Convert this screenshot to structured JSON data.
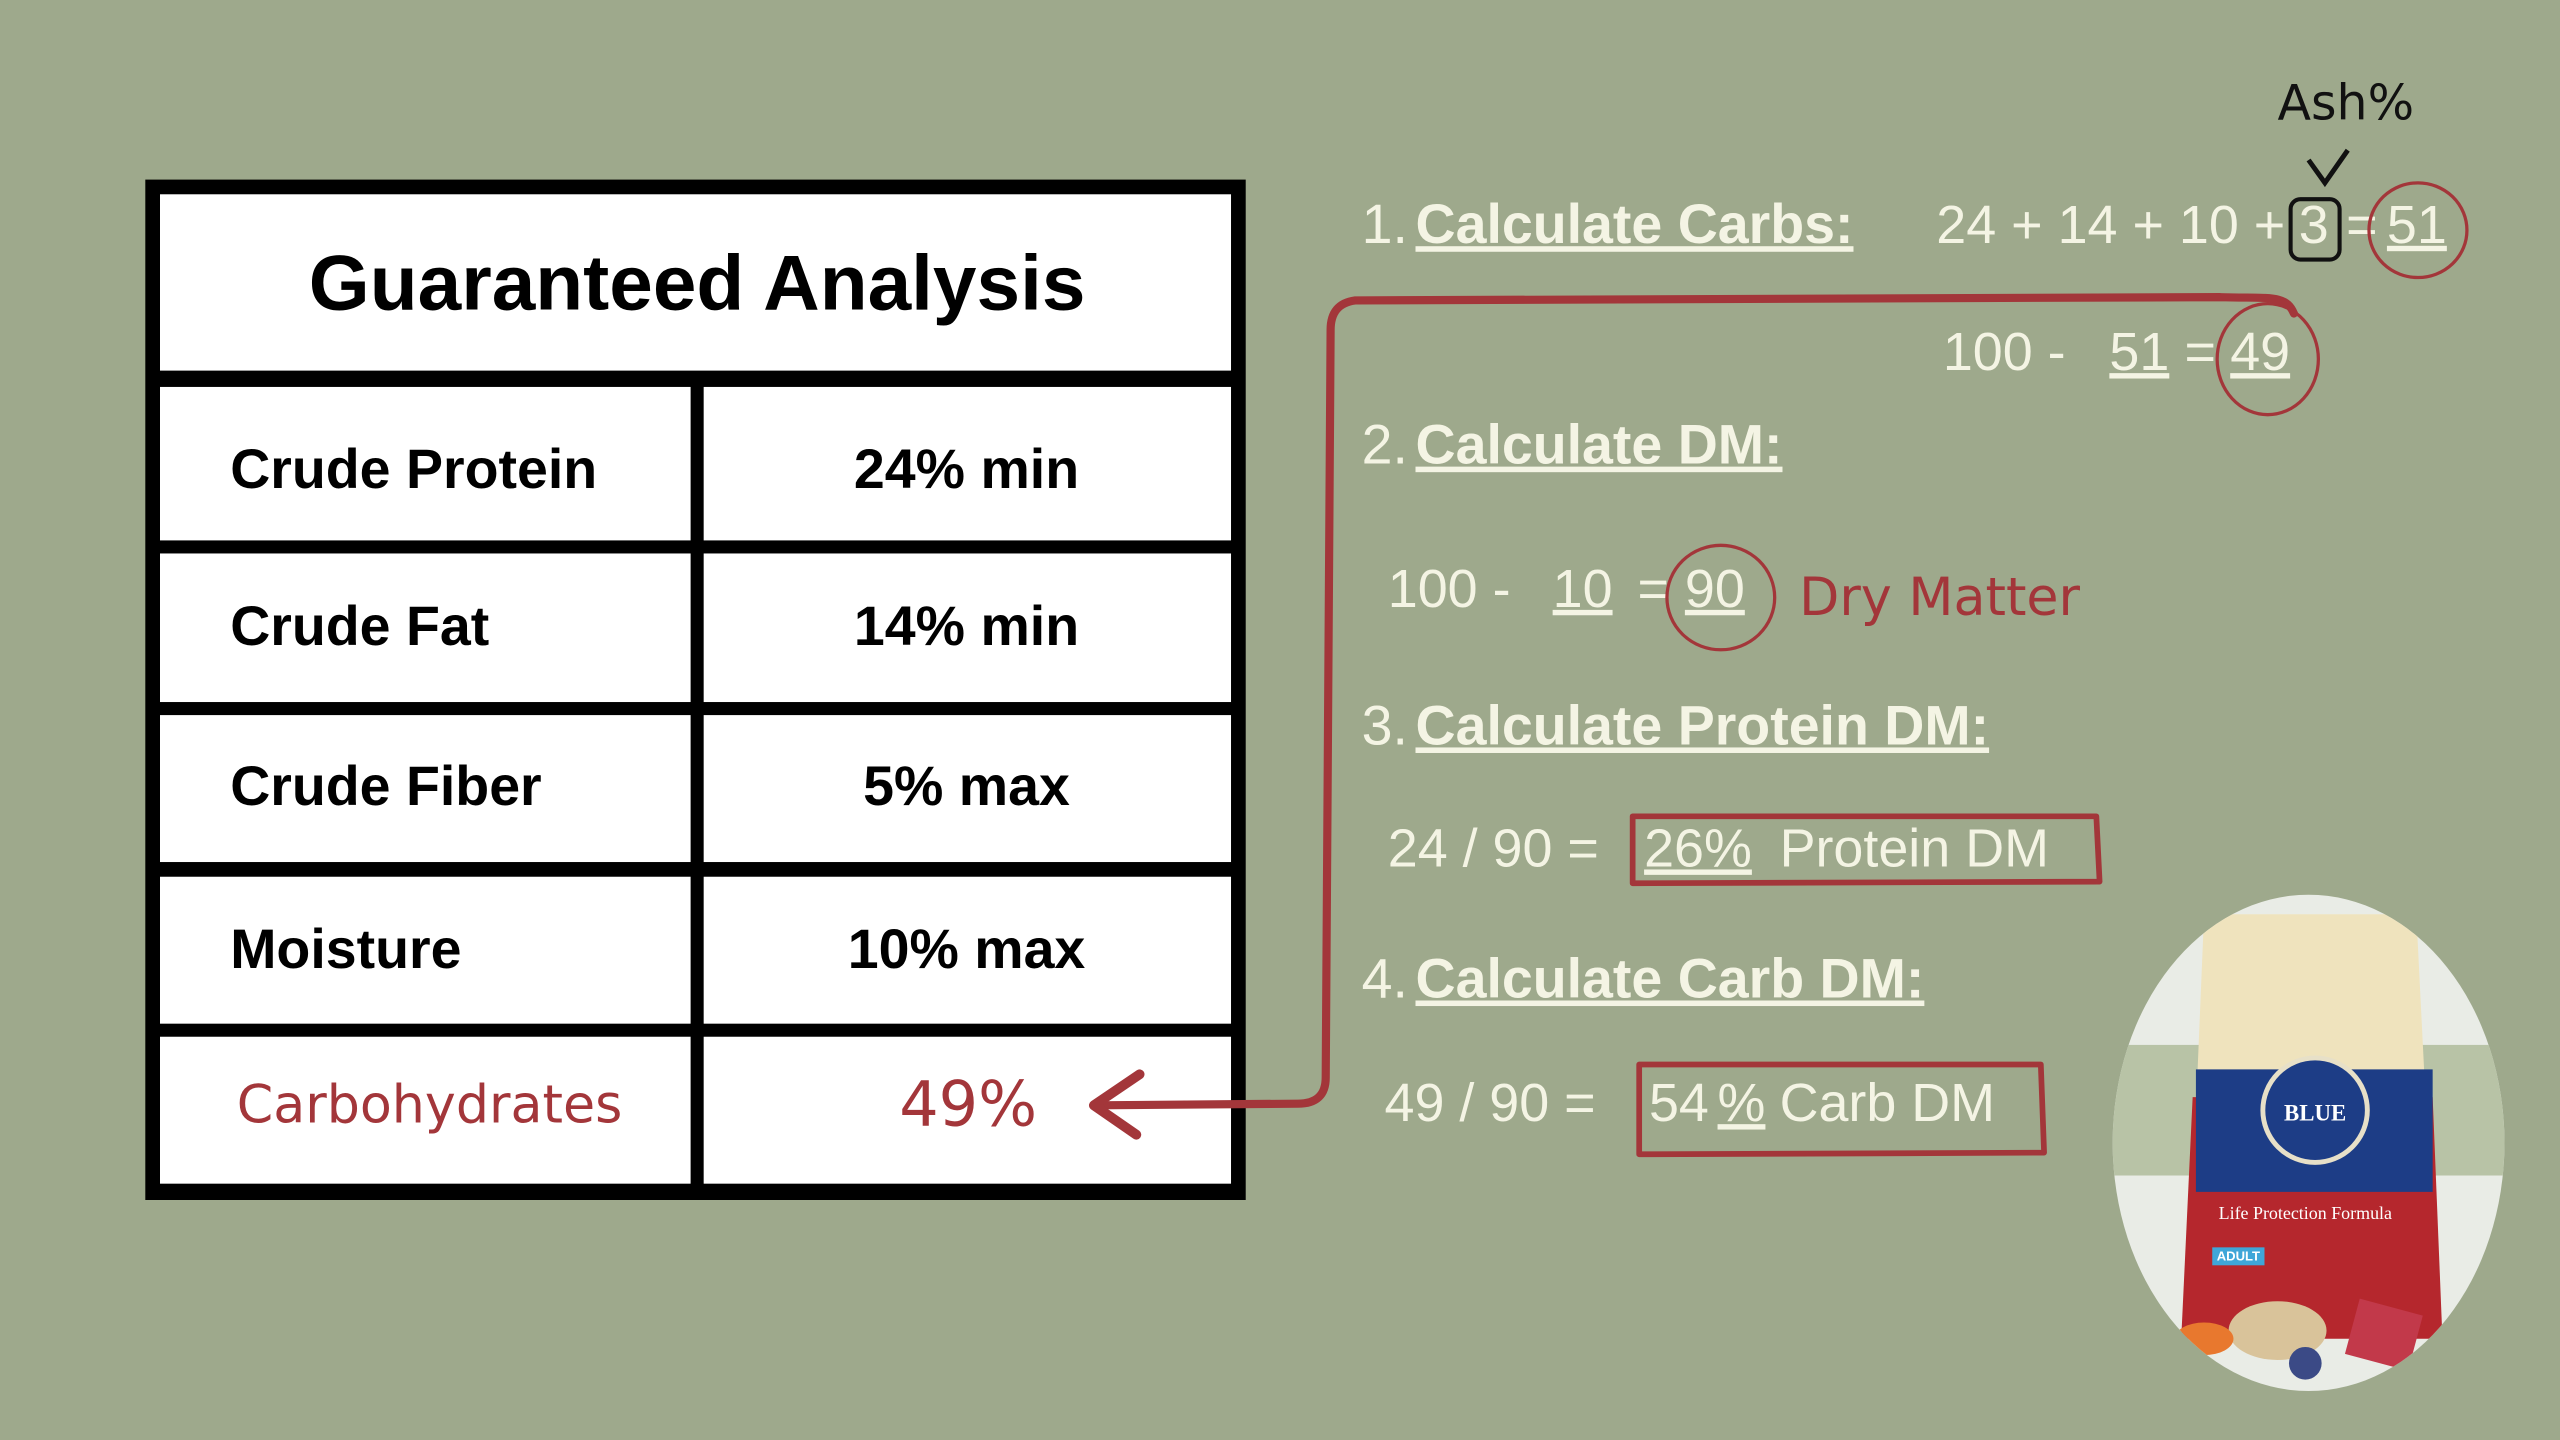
{
  "table": {
    "title": "Guaranteed Analysis",
    "rows": [
      [
        "Crude Protein",
        "24% min"
      ],
      [
        "Crude Fat",
        "14% min"
      ],
      [
        "Crude Fiber",
        "5% max"
      ],
      [
        "Moisture",
        "10% max"
      ],
      [
        "Carbohydrates",
        "49%"
      ]
    ]
  },
  "annotation": "Ash%",
  "steps": [
    {
      "number": "1.",
      "heading": "Calculate Carbs:",
      "lines": [
        [
          "24 + 14  + 10 +",
          "3",
          "=",
          "51"
        ],
        [
          "100 -",
          "51",
          "=",
          "49"
        ]
      ]
    },
    {
      "number": "2.",
      "heading": "Calculate DM:",
      "lines": [
        [
          "100 -",
          "10",
          "=",
          "90",
          "Dry Matter"
        ]
      ]
    },
    {
      "number": "3.",
      "heading": "Calculate Protein DM:",
      "lines": [
        [
          "24 / 90 =",
          "26%",
          "Protein DM"
        ]
      ]
    },
    {
      "number": "4.",
      "heading": "Calculate Carb DM:",
      "lines": [
        [
          "49 / 90 =",
          "54",
          "%",
          "Carb DM"
        ]
      ]
    }
  ],
  "product": {
    "brand": "BLUE",
    "name": "Life Protection Formula",
    "variant": "ADULT"
  }
}
